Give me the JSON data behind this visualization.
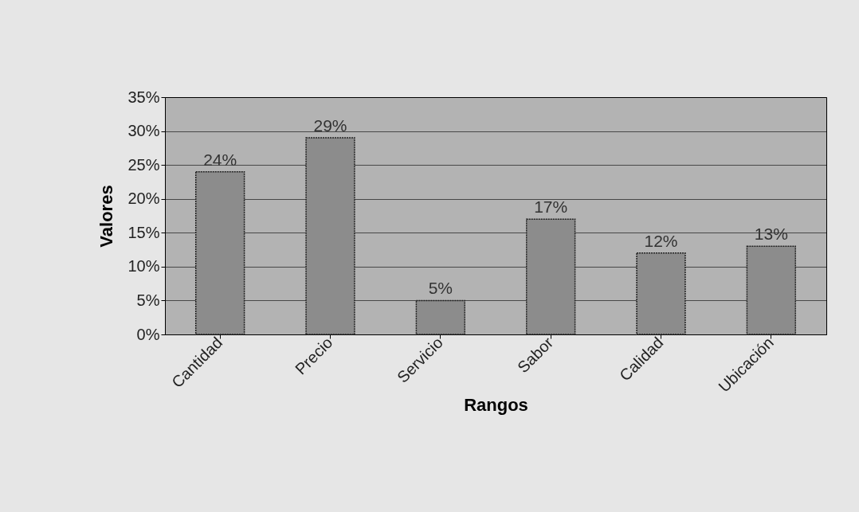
{
  "chart_data": {
    "type": "bar",
    "xlabel": "Rangos",
    "ylabel": "Valores",
    "categories": [
      "Cantidad",
      "Precio",
      "Servicio",
      "Sabor",
      "Calidad",
      "Ubicación"
    ],
    "values": [
      24,
      29,
      5,
      17,
      12,
      13
    ],
    "value_labels": [
      "24%",
      "29%",
      "5%",
      "17%",
      "12%",
      "13%"
    ],
    "color": "#8c8c8c",
    "ylim": [
      0,
      35
    ],
    "yticks": [
      {
        "value": 0,
        "label": "0%"
      },
      {
        "value": 5,
        "label": "5%"
      },
      {
        "value": 10,
        "label": "10%"
      },
      {
        "value": 15,
        "label": "15%"
      },
      {
        "value": 20,
        "label": "20%"
      },
      {
        "value": 25,
        "label": "25%"
      },
      {
        "value": 30,
        "label": "30%"
      },
      {
        "value": 35,
        "label": "35%"
      }
    ],
    "grid": "y"
  }
}
